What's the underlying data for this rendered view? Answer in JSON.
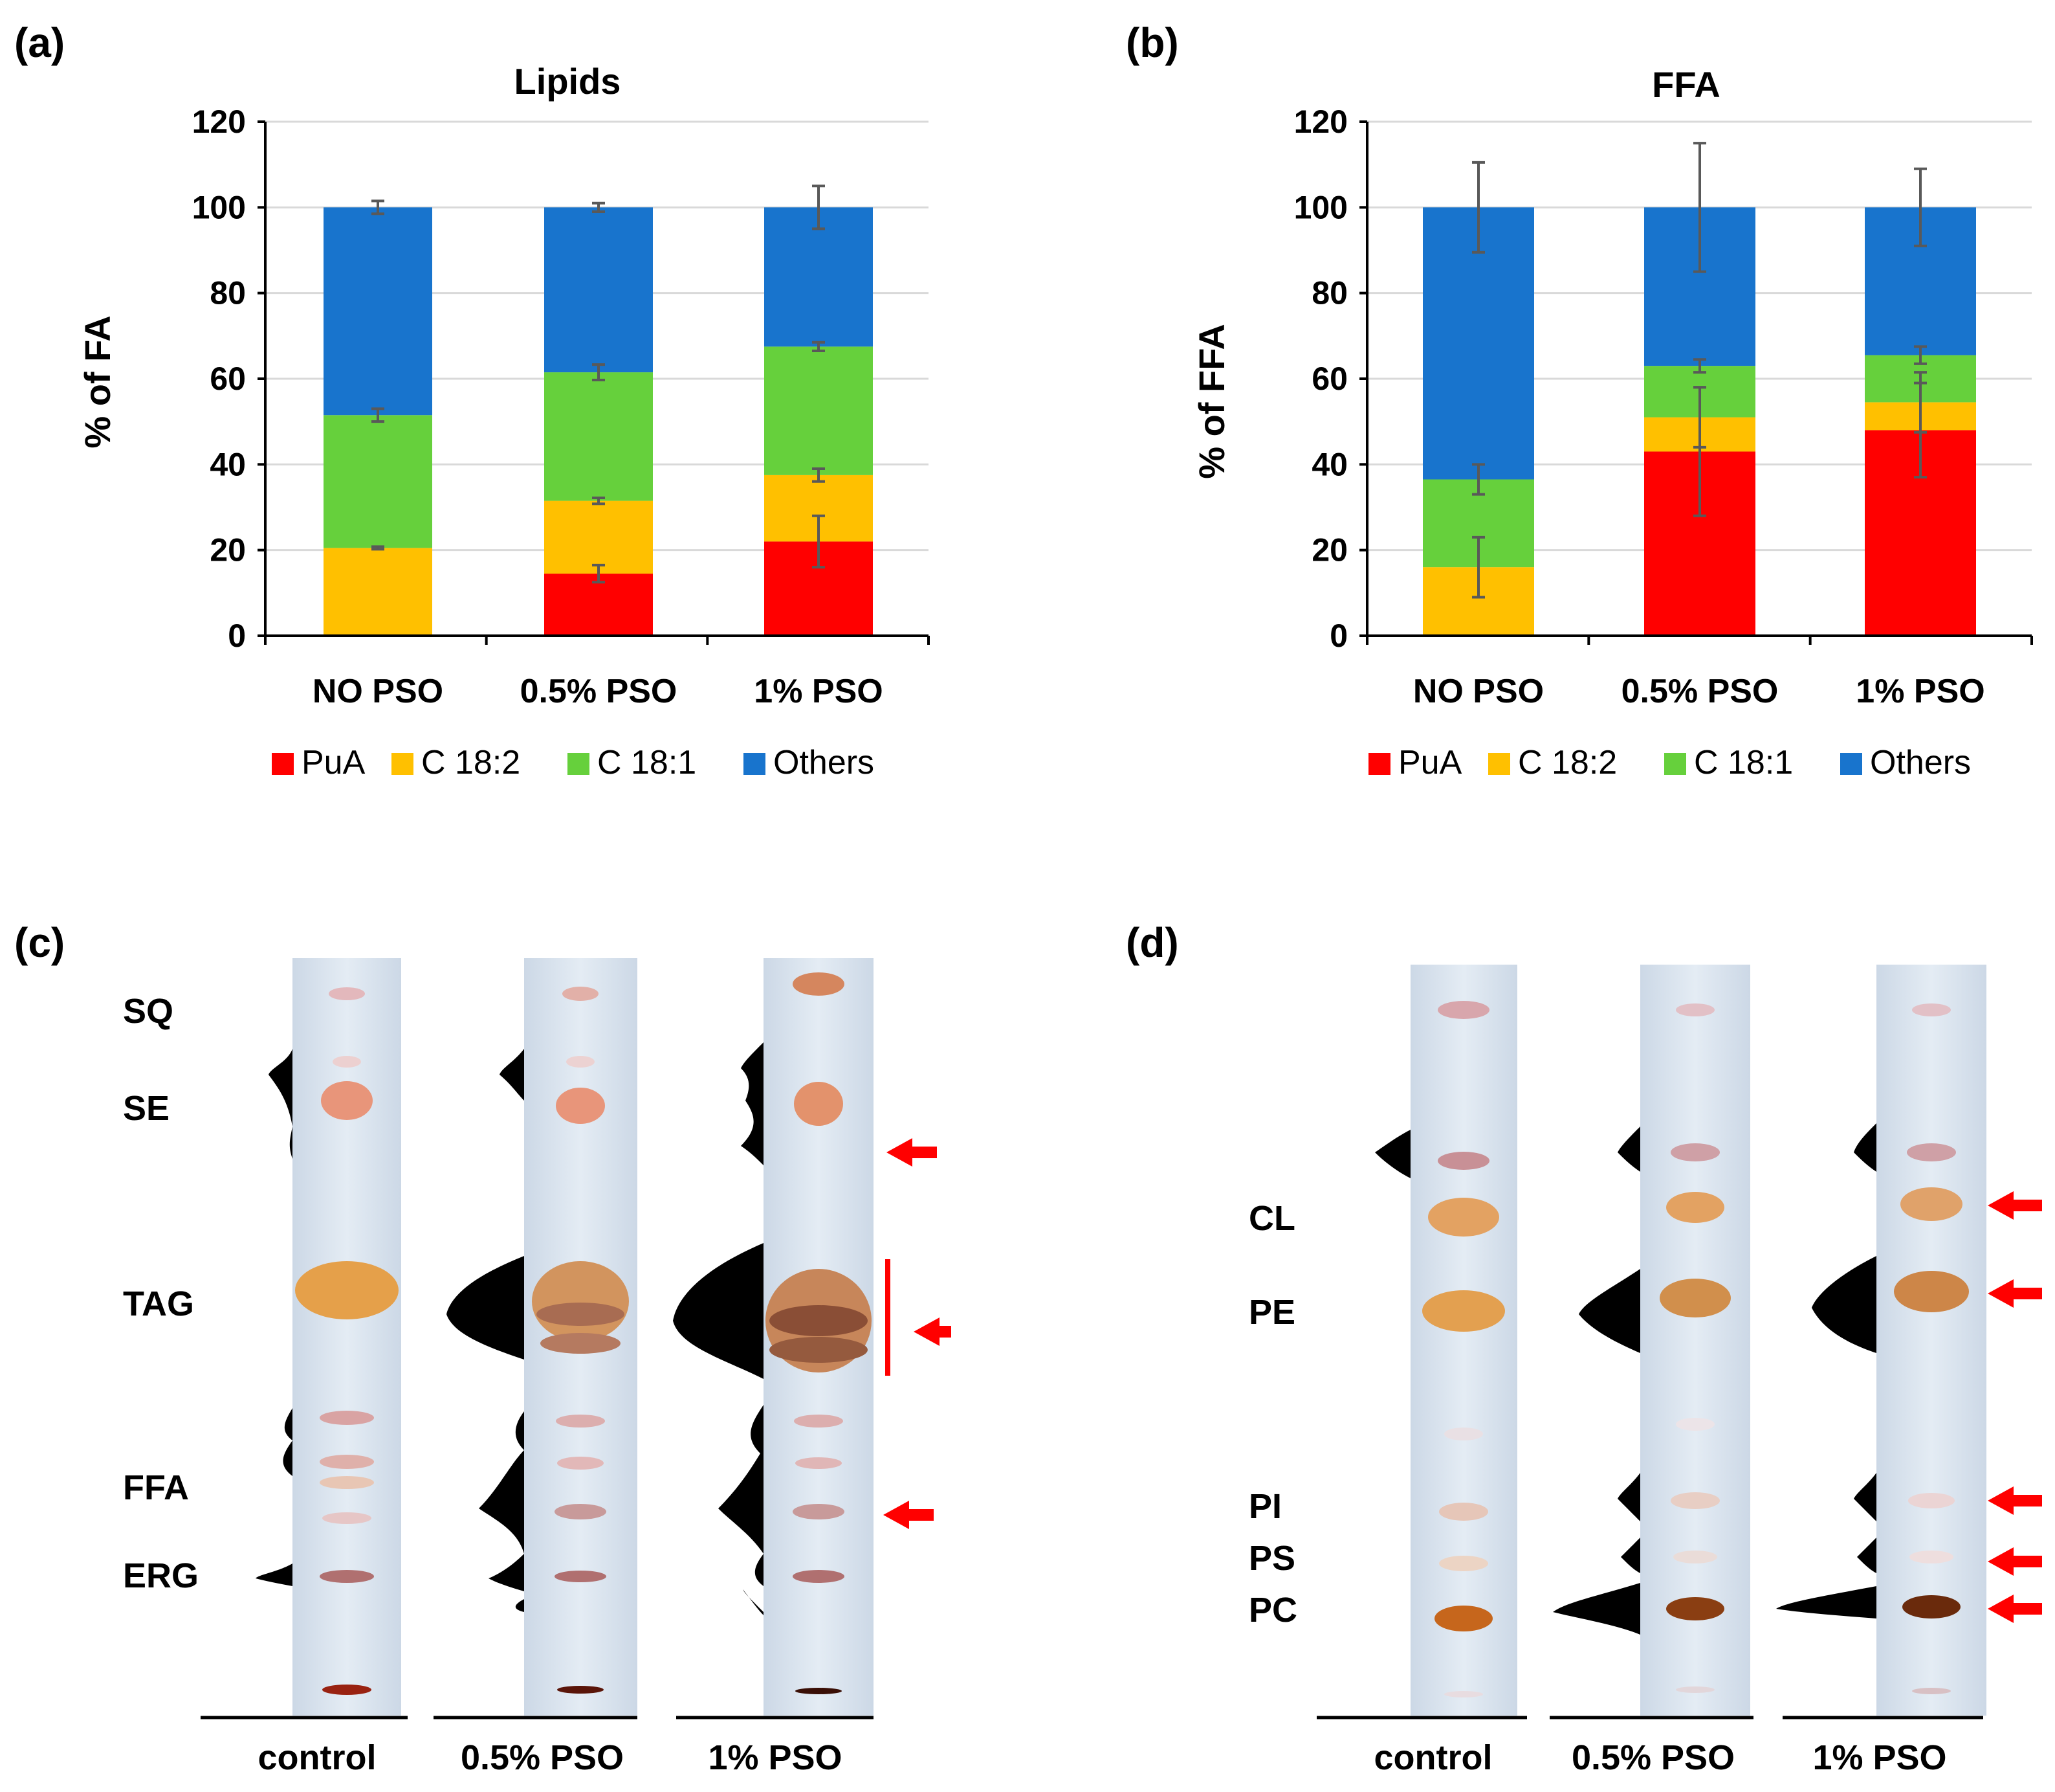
{
  "panel_letters": {
    "a": "(a)",
    "b": "(b)",
    "c": "(c)",
    "d": "(d)"
  },
  "chart_data": [
    {
      "type": "bar",
      "stacked": true,
      "title": "Lipids",
      "xlabel": "",
      "ylabel": "% of FA",
      "ylim": [
        0,
        120
      ],
      "yticks": [
        0,
        20,
        40,
        60,
        80,
        100,
        120
      ],
      "categories": [
        "NO PSO",
        "0.5% PSO",
        "1% PSO"
      ],
      "series": [
        {
          "name": "PuA",
          "color": "#ff0000",
          "values": [
            0,
            14.5,
            22
          ],
          "errors": [
            0,
            2,
            6
          ]
        },
        {
          "name": "C 18:2",
          "color": "#ffc000",
          "values": [
            20.5,
            17,
            15.5
          ],
          "errors": [
            0.3,
            0.7,
            1.5
          ]
        },
        {
          "name": "C 18:1",
          "color": "#66d03c",
          "values": [
            31,
            30,
            30
          ],
          "errors": [
            1.5,
            1.8,
            1
          ]
        },
        {
          "name": "Others",
          "color": "#1874cd",
          "values": [
            48.5,
            38.5,
            32.5
          ],
          "errors": [
            1.5,
            1,
            5
          ]
        }
      ],
      "legend": "bottom"
    },
    {
      "type": "bar",
      "stacked": true,
      "title": "FFA",
      "xlabel": "",
      "ylabel": "% of FFA",
      "ylim": [
        0,
        120
      ],
      "yticks": [
        0,
        20,
        40,
        60,
        80,
        100,
        120
      ],
      "categories": [
        "NO PSO",
        "0.5% PSO",
        "1% PSO"
      ],
      "series": [
        {
          "name": "PuA",
          "color": "#ff0000",
          "values": [
            0,
            43,
            48
          ],
          "errors": [
            0,
            15,
            11
          ]
        },
        {
          "name": "C 18:2",
          "color": "#ffc000",
          "values": [
            16,
            8,
            6.5
          ],
          "errors": [
            7,
            7,
            7
          ]
        },
        {
          "name": "C 18:1",
          "color": "#66d03c",
          "values": [
            20.5,
            12,
            11
          ],
          "errors": [
            3.5,
            1.5,
            2
          ]
        },
        {
          "name": "Others",
          "color": "#1874cd",
          "values": [
            63.5,
            37,
            34.5
          ],
          "errors": [
            10.5,
            15,
            9
          ]
        }
      ],
      "legend": "bottom"
    }
  ],
  "tlc_c": {
    "band_labels": [
      "SQ",
      "SE",
      "TAG",
      "FFA",
      "ERG"
    ],
    "lanes": [
      "control",
      "0.5% PSO",
      "1% PSO"
    ]
  },
  "tlc_d": {
    "band_labels": [
      "CL",
      "PE",
      "PI",
      "PS",
      "PC"
    ],
    "lanes": [
      "control",
      "0.5% PSO",
      "1% PSO"
    ]
  }
}
